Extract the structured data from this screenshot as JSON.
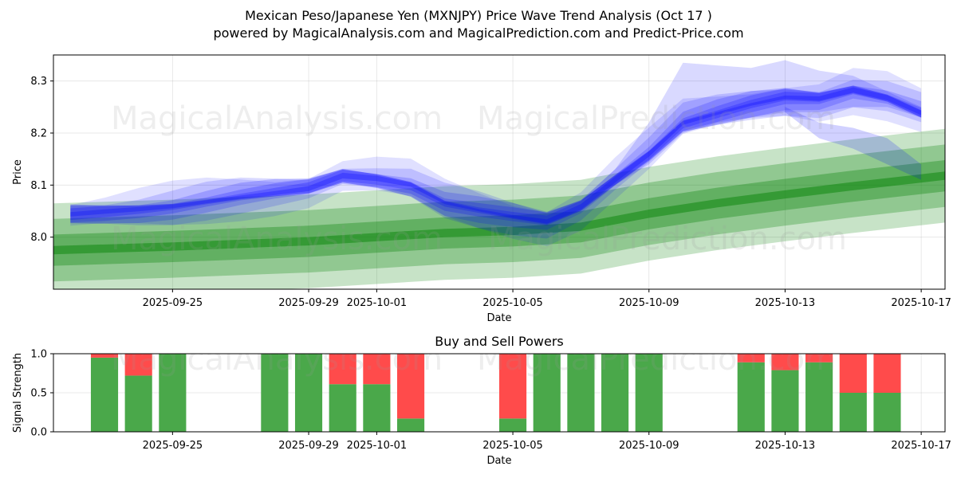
{
  "figure": {
    "title_line1": "Mexican Peso/Japanese Yen (MXNJPY) Price Wave Trend Analysis (Oct 17 )",
    "title_line2": "powered by MagicalAnalysis.com and MagicalPrediction.com and Predict-Price.com",
    "watermarks": [
      "MagicalAnalysis.com",
      "MagicalPrediction.com"
    ]
  },
  "chart_data": [
    {
      "type": "area",
      "title": "",
      "xlabel": "Date",
      "ylabel": "Price",
      "xlim": [
        "2025-09-21.5",
        "2025-10-17.7"
      ],
      "ylim": [
        7.9,
        8.35
      ],
      "xticks": [
        "2025-09-25",
        "2025-09-29",
        "2025-10-01",
        "2025-10-05",
        "2025-10-09",
        "2025-10-13",
        "2025-10-17"
      ],
      "yticks": [
        8.0,
        8.1,
        8.2,
        8.3
      ],
      "grid": true,
      "series": [
        {
          "name": "blue price wave",
          "color": "#0000ff",
          "points": [
            [
              "2025-09-22",
              8.044
            ],
            [
              "2025-09-23",
              8.048
            ],
            [
              "2025-09-24",
              8.052
            ],
            [
              "2025-09-25",
              8.058
            ],
            [
              "2025-09-26",
              8.068
            ],
            [
              "2025-09-27",
              8.078
            ],
            [
              "2025-09-28",
              8.086
            ],
            [
              "2025-09-29",
              8.094
            ],
            [
              "2025-09-30",
              8.118
            ],
            [
              "2025-10-01",
              8.112
            ],
            [
              "2025-10-02",
              8.1
            ],
            [
              "2025-10-03",
              8.066
            ],
            [
              "2025-10-04",
              8.052
            ],
            [
              "2025-10-05",
              8.04
            ],
            [
              "2025-10-06",
              8.03
            ],
            [
              "2025-10-07",
              8.058
            ],
            [
              "2025-10-08",
              8.11
            ],
            [
              "2025-10-09",
              8.16
            ],
            [
              "2025-10-10",
              8.22
            ],
            [
              "2025-10-11",
              8.238
            ],
            [
              "2025-10-12",
              8.255
            ],
            [
              "2025-10-13",
              8.268
            ],
            [
              "2025-10-14",
              8.265
            ],
            [
              "2025-10-15",
              8.282
            ],
            [
              "2025-10-16",
              8.268
            ],
            [
              "2025-10-17",
              8.24
            ]
          ]
        },
        {
          "name": "green trend band",
          "color": "#008000",
          "points": [
            [
              "2025-09-21.5",
              7.975
            ],
            [
              "2025-09-25",
              7.982
            ],
            [
              "2025-09-29",
              7.992
            ],
            [
              "2025-10-01",
              8.0
            ],
            [
              "2025-10-03",
              8.008
            ],
            [
              "2025-10-05",
              8.012
            ],
            [
              "2025-10-07",
              8.02
            ],
            [
              "2025-10-09",
              8.045
            ],
            [
              "2025-10-11",
              8.065
            ],
            [
              "2025-10-13",
              8.082
            ],
            [
              "2025-10-15",
              8.098
            ],
            [
              "2025-10-17.7",
              8.118
            ]
          ]
        }
      ]
    },
    {
      "type": "bar",
      "title": "Buy and Sell Powers",
      "xlabel": "Date",
      "ylabel": "Signal Strength",
      "ylim": [
        0,
        1
      ],
      "yticks": [
        "0.0",
        "0.5",
        "1.0"
      ],
      "xticks": [
        "2025-09-25",
        "2025-09-29",
        "2025-10-01",
        "2025-10-05",
        "2025-10-09",
        "2025-10-13",
        "2025-10-17"
      ],
      "colors": {
        "buy": "#4aa84a",
        "sell": "#ff4b4b"
      },
      "categories": [
        "2025-09-23",
        "2025-09-24",
        "2025-09-25",
        "2025-09-28",
        "2025-09-29",
        "2025-09-30",
        "2025-10-01",
        "2025-10-02",
        "2025-10-05",
        "2025-10-06",
        "2025-10-07",
        "2025-10-08",
        "2025-10-09",
        "2025-10-12",
        "2025-10-13",
        "2025-10-14",
        "2025-10-15",
        "2025-10-16"
      ],
      "series": [
        {
          "name": "Buy",
          "values": [
            0.95,
            0.72,
            1.0,
            1.0,
            1.0,
            0.61,
            0.61,
            0.17,
            0.17,
            1.0,
            1.0,
            1.0,
            1.0,
            0.89,
            0.79,
            0.89,
            0.5,
            0.5
          ]
        },
        {
          "name": "Sell",
          "values": [
            0.05,
            0.28,
            0.0,
            0.0,
            0.0,
            0.39,
            0.39,
            0.83,
            0.83,
            0.0,
            0.0,
            0.0,
            0.0,
            0.11,
            0.21,
            0.11,
            0.5,
            0.5
          ]
        }
      ]
    }
  ]
}
